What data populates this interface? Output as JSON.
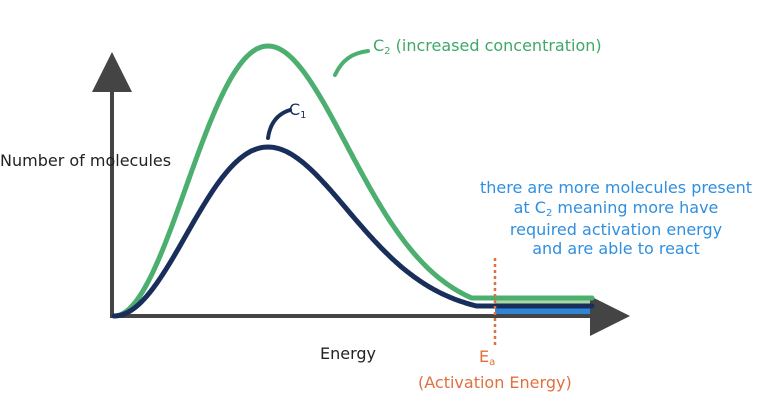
{
  "chart_data": {
    "type": "line",
    "title": "",
    "xlabel": "Energy",
    "ylabel": "Number of molecules",
    "series": [
      {
        "name": "C2 (increased concentration)",
        "label_base": "C",
        "label_sub": "2",
        "label_suffix": "(increased concentration)",
        "color": "#4caf6f"
      },
      {
        "name": "C1",
        "label_base": "C",
        "label_sub": "1",
        "color": "#1a2e5c"
      }
    ],
    "annotations": {
      "activation_energy": {
        "label_base": "E",
        "label_sub": "a",
        "label_suffix": "(Activation Energy)",
        "color": "#e0703d"
      },
      "note": {
        "line1": "there are more molecules present",
        "line2_prefix": "at C",
        "line2_sub": "2",
        "line2_suffix": " meaning more have",
        "line3": "required activation energy",
        "line4": "and are able to react",
        "color": "#2f8fe0"
      }
    },
    "shading": {
      "c2_extra_color": "#a8d8a4",
      "c1_area_color": "#2f86d6"
    }
  }
}
